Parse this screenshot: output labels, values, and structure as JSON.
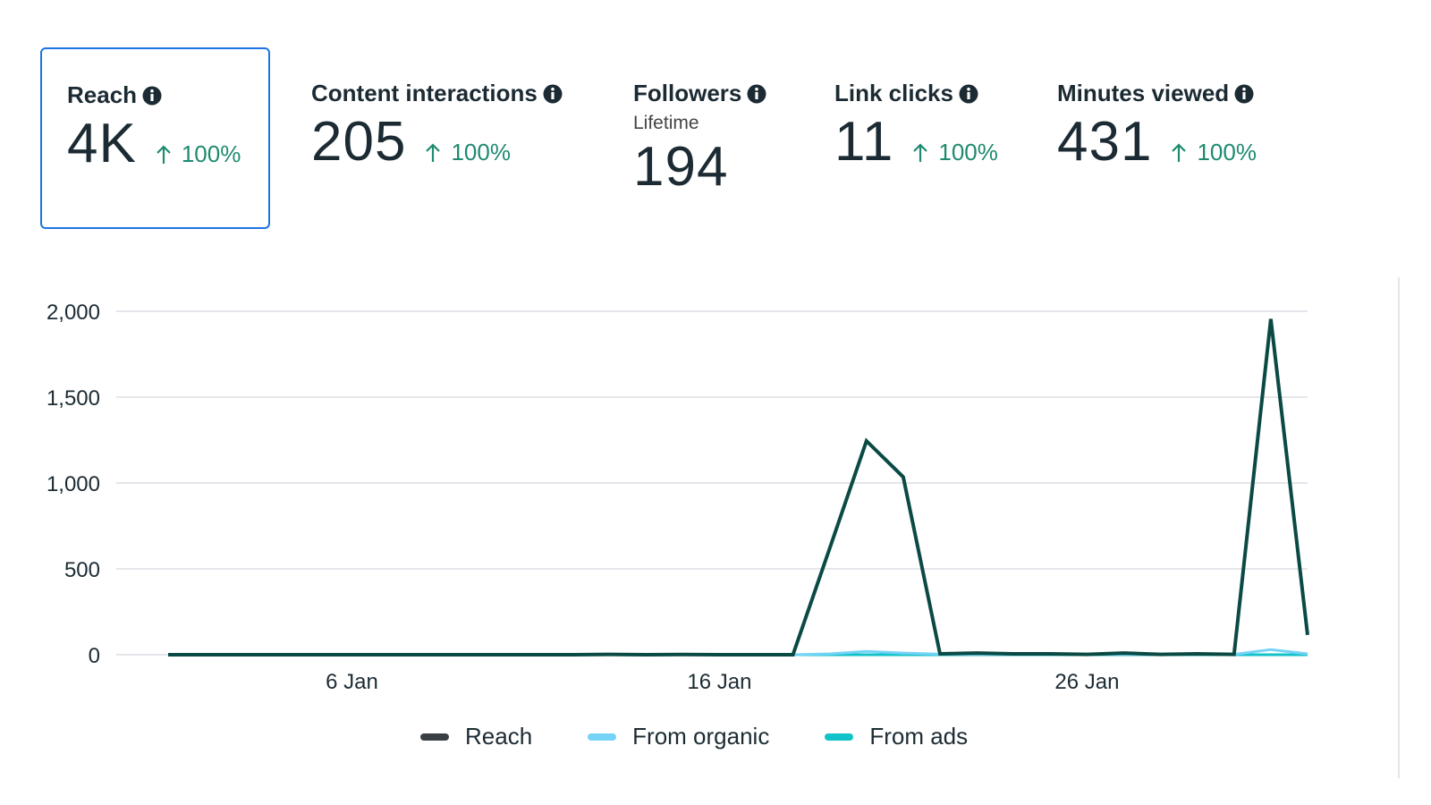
{
  "metrics": [
    {
      "label": "Reach",
      "value": "4K",
      "trend": "100%",
      "selected": true
    },
    {
      "label": "Content interactions",
      "value": "205",
      "trend": "100%"
    },
    {
      "label": "Followers",
      "sublabel": "Lifetime",
      "value": "194"
    },
    {
      "label": "Link clicks",
      "value": "11",
      "trend": "100%"
    },
    {
      "label": "Minutes viewed",
      "value": "431",
      "trend": "100%"
    }
  ],
  "icons": {
    "info": "info-icon",
    "trend": "arrow-up-icon"
  },
  "colors": {
    "selected_border": "#1b74e4",
    "trend": "#1f8a70",
    "reach": "#0b4a44",
    "from_organic": "#74d3f7",
    "from_ads": "#12c2c9",
    "grid": "#e4e6eb"
  },
  "chart_data": {
    "type": "line",
    "x": [
      "1 Jan",
      "2 Jan",
      "3 Jan",
      "4 Jan",
      "5 Jan",
      "6 Jan",
      "7 Jan",
      "8 Jan",
      "9 Jan",
      "10 Jan",
      "11 Jan",
      "12 Jan",
      "13 Jan",
      "14 Jan",
      "15 Jan",
      "16 Jan",
      "17 Jan",
      "18 Jan",
      "19 Jan",
      "20 Jan",
      "21 Jan",
      "22 Jan",
      "23 Jan",
      "24 Jan",
      "25 Jan",
      "26 Jan",
      "27 Jan",
      "28 Jan",
      "29 Jan",
      "30 Jan",
      "31 Jan",
      "1 Feb"
    ],
    "x_ticks": [
      "6 Jan",
      "16 Jan",
      "26 Jan"
    ],
    "y_ticks": [
      "2,000",
      "1,500",
      "1,000",
      "500",
      "0"
    ],
    "y_tick_values": [
      2000,
      1500,
      1000,
      500,
      0
    ],
    "ylim": [
      0,
      2000
    ],
    "grid": true,
    "legend_position": "bottom",
    "series": [
      {
        "name": "Reach",
        "color": "#3a3f44",
        "line_color": "#0b4a44",
        "values": [
          0,
          0,
          0,
          0,
          0,
          0,
          0,
          0,
          0,
          0,
          0,
          0,
          2,
          0,
          1,
          0,
          0,
          0,
          620,
          1245,
          1035,
          5,
          10,
          5,
          5,
          2,
          10,
          2,
          5,
          2,
          1955,
          115
        ]
      },
      {
        "name": "From organic",
        "color": "#74d3f7",
        "line_color": "#74d3f7",
        "values": [
          0,
          0,
          0,
          0,
          0,
          0,
          0,
          0,
          0,
          0,
          0,
          0,
          2,
          0,
          1,
          0,
          0,
          0,
          5,
          20,
          10,
          3,
          2,
          2,
          2,
          2,
          2,
          2,
          2,
          2,
          30,
          5
        ]
      },
      {
        "name": "From ads",
        "color": "#12c2c9",
        "line_color": "#12c2c9",
        "values": [
          0,
          0,
          0,
          0,
          0,
          0,
          0,
          0,
          0,
          0,
          0,
          0,
          0,
          0,
          0,
          0,
          0,
          0,
          0,
          0,
          0,
          0,
          0,
          0,
          0,
          0,
          0,
          0,
          0,
          0,
          0,
          0
        ]
      }
    ]
  }
}
